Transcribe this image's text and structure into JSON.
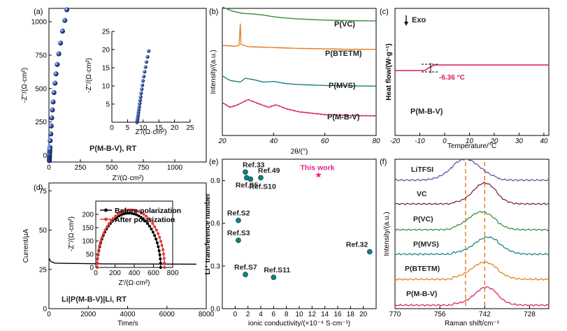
{
  "chart_data": [
    {
      "panel": "(a)",
      "type": "scatter",
      "xlabel": "Z'/(Ω·cm²)",
      "ylabel": "-Z''/(Ω·cm²)",
      "xlim": [
        0,
        1250
      ],
      "ylim": [
        -50,
        1100
      ],
      "xticks": [
        0,
        250,
        500,
        750,
        1000
      ],
      "yticks": [
        0,
        250,
        500,
        750,
        1000
      ],
      "annotation": "P(M-B-V), RT",
      "marker_color": "#2c4fa3",
      "points": [
        [
          5,
          20
        ],
        [
          8,
          60
        ],
        [
          10,
          110
        ],
        [
          14,
          160
        ],
        [
          18,
          220
        ],
        [
          22,
          280
        ],
        [
          27,
          340
        ],
        [
          33,
          400
        ],
        [
          40,
          470
        ],
        [
          48,
          540
        ],
        [
          56,
          610
        ],
        [
          66,
          680
        ],
        [
          78,
          760
        ],
        [
          92,
          840
        ],
        [
          108,
          930
        ],
        [
          126,
          1010
        ],
        [
          142,
          1090
        ],
        [
          3,
          -40
        ],
        [
          3,
          -30
        ],
        [
          4,
          -20
        ],
        [
          4,
          -10
        ],
        [
          5,
          0
        ],
        [
          5,
          10
        ],
        [
          6,
          30
        ],
        [
          7,
          45
        ]
      ],
      "inset": {
        "xlim": [
          0,
          25
        ],
        "ylim": [
          0,
          25
        ],
        "xticks": [
          0,
          5,
          10,
          15,
          20,
          25
        ],
        "yticks": [
          5,
          10,
          15,
          20,
          25
        ],
        "xlabel": "Z'/(Ω·cm²)",
        "ylabel": "-Z''/(Ω·cm²)",
        "points": [
          [
            8.0,
            0.0
          ],
          [
            8.1,
            0.4
          ],
          [
            8.2,
            0.9
          ],
          [
            8.3,
            1.5
          ],
          [
            8.4,
            2.1
          ],
          [
            8.5,
            2.8
          ],
          [
            8.6,
            3.5
          ],
          [
            8.75,
            4.3
          ],
          [
            8.9,
            5.2
          ],
          [
            9.05,
            6.1
          ],
          [
            9.2,
            7.0
          ],
          [
            9.35,
            8.0
          ],
          [
            9.55,
            9.1
          ],
          [
            9.75,
            10.2
          ],
          [
            9.95,
            11.4
          ],
          [
            10.2,
            12.6
          ],
          [
            10.45,
            13.9
          ],
          [
            10.75,
            15.2
          ],
          [
            11.05,
            16.6
          ],
          [
            11.4,
            18.0
          ],
          [
            11.75,
            19.6
          ]
        ]
      }
    },
    {
      "panel": "(b)",
      "type": "line",
      "xlabel": "2θ/(°)",
      "ylabel": "Intensity/(a.u.)",
      "xlim": [
        20,
        80
      ],
      "xticks": [
        20,
        40,
        60,
        80
      ],
      "series": [
        {
          "name": "P(VC)",
          "color": "#2e8b3a",
          "points": [
            [
              20,
              0.95
            ],
            [
              24,
              0.8
            ],
            [
              28,
              0.72
            ],
            [
              32,
              0.7
            ],
            [
              36,
              0.66
            ],
            [
              40,
              0.6
            ],
            [
              44,
              0.56
            ],
            [
              50,
              0.52
            ],
            [
              60,
              0.48
            ],
            [
              70,
              0.46
            ],
            [
              80,
              0.45
            ]
          ]
        },
        {
          "name": "P(BTETM)",
          "color": "#e07b1a",
          "points": [
            [
              20,
              0.5
            ],
            [
              25,
              0.48
            ],
            [
              26.5,
              0.5
            ],
            [
              27,
              1.0
            ],
            [
              27.3,
              0.52
            ],
            [
              30,
              0.47
            ],
            [
              40,
              0.45
            ],
            [
              50,
              0.43
            ],
            [
              60,
              0.42
            ],
            [
              70,
              0.41
            ],
            [
              80,
              0.41
            ]
          ]
        },
        {
          "name": "P(MVS)",
          "color": "#177c7c",
          "points": [
            [
              20,
              0.7
            ],
            [
              23,
              0.55
            ],
            [
              27,
              0.5
            ],
            [
              29,
              0.62
            ],
            [
              32,
              0.58
            ],
            [
              36,
              0.5
            ],
            [
              40,
              0.52
            ],
            [
              45,
              0.45
            ],
            [
              50,
              0.42
            ],
            [
              60,
              0.39
            ],
            [
              70,
              0.38
            ],
            [
              80,
              0.37
            ]
          ]
        },
        {
          "name": "P(M-B-V)",
          "color": "#d81b60",
          "points": [
            [
              20,
              0.75
            ],
            [
              23,
              0.6
            ],
            [
              26,
              0.68
            ],
            [
              30,
              0.85
            ],
            [
              34,
              0.72
            ],
            [
              38,
              0.6
            ],
            [
              41,
              0.68
            ],
            [
              45,
              0.55
            ],
            [
              50,
              0.45
            ],
            [
              60,
              0.36
            ],
            [
              70,
              0.33
            ],
            [
              80,
              0.32
            ]
          ]
        }
      ]
    },
    {
      "panel": "(c)",
      "type": "line",
      "xlabel": "Temperature/°C",
      "ylabel": "Heat flow/(W·g⁻¹)",
      "xlim": [
        -20,
        42
      ],
      "xticks": [
        -20,
        -10,
        0,
        10,
        20,
        30,
        40
      ],
      "header": "Exo",
      "annotation": "P(M-B-V)",
      "tg_label": "-6.36 °C",
      "color": "#d81b60",
      "points": [
        [
          -20,
          0.0
        ],
        [
          -12,
          0.0
        ],
        [
          -8,
          0.0
        ],
        [
          -6,
          0.06
        ],
        [
          -4,
          0.1
        ],
        [
          0,
          0.1
        ],
        [
          10,
          0.1
        ],
        [
          20,
          0.1
        ],
        [
          30,
          0.1
        ],
        [
          42,
          0.1
        ]
      ]
    },
    {
      "panel": "(d)",
      "type": "line",
      "xlabel": "Time/s",
      "ylabel": "Current/μA",
      "xlim": [
        0,
        8000
      ],
      "ylim": [
        0,
        80
      ],
      "xticks": [
        0,
        2000,
        4000,
        6000,
        8000
      ],
      "yticks": [
        0,
        25,
        50,
        75
      ],
      "annotation": "Li|P(M-B-V)|Li, RT",
      "series": [
        {
          "name": "current",
          "color": "#000000",
          "points": [
            [
              0,
              32
            ],
            [
              100,
              30
            ],
            [
              300,
              29
            ],
            [
              1000,
              28.8
            ],
            [
              3000,
              28.5
            ],
            [
              5000,
              28.4
            ],
            [
              7500,
              28.3
            ]
          ]
        }
      ],
      "inset": {
        "xlim": [
          0,
          800
        ],
        "ylim": [
          0,
          250
        ],
        "xticks": [
          0,
          200,
          400,
          600,
          800
        ],
        "yticks": [
          0,
          50,
          100,
          150,
          200
        ],
        "xlabel": "Z'/(Ω·cm²)",
        "ylabel": "-Z''/(Ω·cm²)",
        "series": [
          {
            "name": "Before polarization",
            "color": "#000000",
            "center": 345,
            "radius": 330
          },
          {
            "name": "After polarization",
            "color": "#e53935",
            "center": 365,
            "radius": 350
          }
        ]
      }
    },
    {
      "panel": "(e)",
      "type": "scatter",
      "xlabel": "ionic conductivity/(×10⁻⁴ S·cm⁻¹)",
      "ylabel": "Li⁺ transference number",
      "xlim": [
        -2,
        22
      ],
      "ylim": [
        0,
        1.05
      ],
      "xticks": [
        0,
        2,
        4,
        6,
        8,
        10,
        12,
        14,
        16,
        18,
        20
      ],
      "yticks": [
        0.0,
        0.3,
        0.6,
        0.9
      ],
      "points": [
        {
          "label": "Ref.33",
          "x": 1.6,
          "y": 0.96,
          "color": "#177c7c"
        },
        {
          "label": "Ref.S5",
          "x": 1.8,
          "y": 0.92,
          "color": "#177c7c"
        },
        {
          "label": "Ref.49",
          "x": 4.0,
          "y": 0.92,
          "color": "#177c7c"
        },
        {
          "label": "Ref.S10",
          "x": 2.4,
          "y": 0.91,
          "color": "#177c7c"
        },
        {
          "label": "Ref.S2",
          "x": 0.5,
          "y": 0.62,
          "color": "#177c7c"
        },
        {
          "label": "Ref.S3",
          "x": 0.5,
          "y": 0.48,
          "color": "#177c7c"
        },
        {
          "label": "Ref.S7",
          "x": 1.6,
          "y": 0.24,
          "color": "#177c7c"
        },
        {
          "label": "Ref.S11",
          "x": 6.0,
          "y": 0.22,
          "color": "#177c7c"
        },
        {
          "label": "Ref.32",
          "x": 21.0,
          "y": 0.4,
          "color": "#177c7c"
        },
        {
          "label": "This work",
          "x": 13.0,
          "y": 0.94,
          "color": "#e91e8c",
          "marker": "star"
        }
      ]
    },
    {
      "panel": "(f)",
      "type": "line",
      "xlabel": "Raman shift/cm⁻¹",
      "ylabel": "Intensity/(a.u.)",
      "xlim": [
        770,
        722
      ],
      "reversed_x": true,
      "xticks": [
        770,
        756,
        742,
        728
      ],
      "dashed_lines": [
        748,
        742
      ],
      "series": [
        {
          "name": "LiTFSI",
          "color": "#5c4da0",
          "peak": 748,
          "width": 4.5,
          "height": 1.0
        },
        {
          "name": "VC",
          "color": "#7b1e2a",
          "peak": 742,
          "width": 3.5,
          "height": 1.0
        },
        {
          "name": "P(VC)",
          "color": "#2e8b3a",
          "peak": 743,
          "width": 4.0,
          "height": 0.85
        },
        {
          "name": "P(MVS)",
          "color": "#177c7c",
          "peak": 741,
          "width": 4.0,
          "height": 0.8
        },
        {
          "name": "P(BTETM)",
          "color": "#e07b1a",
          "peak": 742,
          "width": 4.0,
          "height": 0.8
        },
        {
          "name": "P(M-B-V)",
          "color": "#d81b60",
          "peak": 741.5,
          "width": 3.5,
          "height": 0.85
        }
      ]
    }
  ]
}
